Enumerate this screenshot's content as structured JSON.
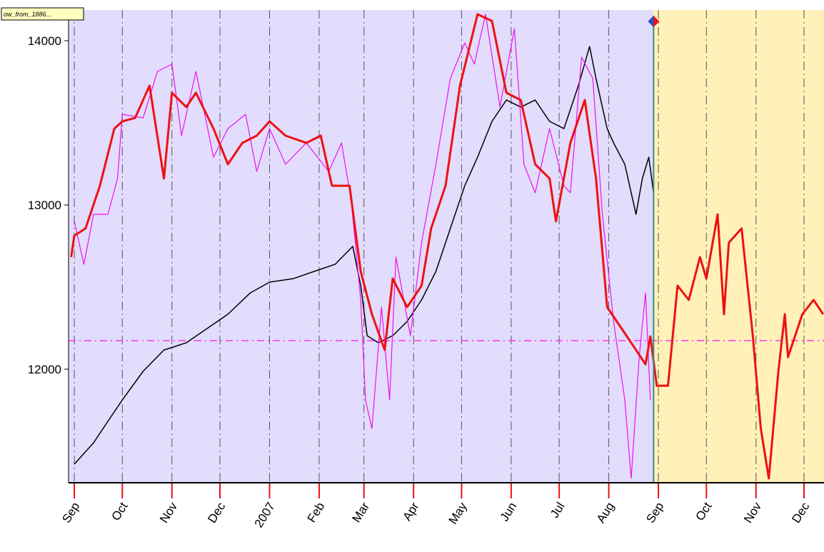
{
  "chart_data": {
    "type": "line",
    "label_tag": "ow_from_1886...",
    "xlim": [
      -3.6,
      468.5
    ],
    "ylim": [
      11309,
      14187
    ],
    "xticks": [
      {
        "value": 0,
        "label": "Sep"
      },
      {
        "value": 30,
        "label": "Oct"
      },
      {
        "value": 61,
        "label": "Nov"
      },
      {
        "value": 91,
        "label": "Dec"
      },
      {
        "value": 122,
        "label": "2007"
      },
      {
        "value": 153,
        "label": "Feb"
      },
      {
        "value": 181,
        "label": "Mar"
      },
      {
        "value": 212,
        "label": "Apr"
      },
      {
        "value": 242,
        "label": "May"
      },
      {
        "value": 273,
        "label": "Jun"
      },
      {
        "value": 303,
        "label": "Jul"
      },
      {
        "value": 334,
        "label": "Aug"
      },
      {
        "value": 365,
        "label": "Sep"
      },
      {
        "value": 395,
        "label": "Oct"
      },
      {
        "value": 426,
        "label": "Nov"
      },
      {
        "value": 456,
        "label": "Dec"
      }
    ],
    "yticks": [
      12000,
      13000,
      14000
    ],
    "grid": true,
    "hline": 12174,
    "hline_color": "#ff33ff",
    "vline": 362,
    "vline_color": "#2f8f8f",
    "history_color": "#e2dcfd",
    "forecast_color": "#fff1b8",
    "series": [
      {
        "color": "#000000",
        "width": 1.5,
        "x": [
          0,
          12,
          21,
          30,
          43,
          56,
          70,
          83,
          96,
          110,
          122,
          137,
          150,
          163,
          174,
          179,
          183,
          190,
          199,
          208,
          217,
          226,
          235,
          244,
          252,
          261,
          270,
          279,
          288,
          297,
          306,
          315,
          322,
          326,
          333,
          337,
          344,
          351,
          355,
          359,
          362
        ],
        "values": [
          11422,
          11552,
          11683,
          11813,
          11987,
          12117,
          12161,
          12248,
          12335,
          12465,
          12530,
          12552,
          12596,
          12639,
          12748,
          12509,
          12204,
          12161,
          12204,
          12291,
          12422,
          12596,
          12857,
          13117,
          13291,
          13509,
          13639,
          13596,
          13639,
          13509,
          13465,
          13726,
          13965,
          13770,
          13465,
          13378,
          13248,
          12943,
          13161,
          13291,
          13074
        ]
      },
      {
        "color": "#ee11ee",
        "width": 1.2,
        "x": [
          0,
          6,
          12,
          21,
          27,
          30,
          43,
          52,
          61,
          67,
          76,
          87,
          96,
          107,
          114,
          122,
          132,
          145,
          159,
          167,
          173,
          179,
          182,
          186,
          192,
          197,
          201,
          210,
          217,
          226,
          235,
          244,
          250,
          257,
          266,
          275,
          281,
          288,
          297,
          306,
          310,
          317,
          324,
          330,
          337,
          344,
          348,
          353,
          357,
          360
        ],
        "values": [
          12900,
          12639,
          12943,
          12943,
          13161,
          13552,
          13530,
          13813,
          13857,
          13422,
          13813,
          13291,
          13465,
          13552,
          13204,
          13465,
          13248,
          13378,
          13204,
          13378,
          13030,
          12422,
          11813,
          11639,
          12378,
          11813,
          12683,
          12204,
          12770,
          13248,
          13770,
          13987,
          13857,
          14161,
          13596,
          14074,
          13248,
          13074,
          13465,
          13117,
          13074,
          13900,
          13770,
          12943,
          12291,
          11813,
          11335,
          12074,
          12465,
          11813
        ]
      },
      {
        "color": "#ee1111",
        "width": 3,
        "x": [
          -2,
          0,
          7,
          16,
          25,
          30,
          38,
          47,
          56,
          61,
          70,
          76,
          87,
          96,
          105,
          114,
          122,
          132,
          145,
          154,
          161,
          172,
          179,
          186,
          194,
          199,
          208,
          217,
          223,
          232,
          241,
          252,
          261,
          270,
          279,
          288,
          297,
          301,
          310,
          319,
          326,
          333,
          342,
          351,
          357,
          360,
          364,
          371,
          377,
          384,
          391,
          395,
          402,
          406,
          409,
          417,
          424,
          429,
          434,
          440,
          444,
          446,
          455,
          462,
          468
        ],
        "values": [
          12683,
          12813,
          12857,
          13117,
          13465,
          13509,
          13530,
          13726,
          13161,
          13683,
          13596,
          13683,
          13465,
          13248,
          13378,
          13422,
          13509,
          13422,
          13378,
          13422,
          13117,
          13117,
          12596,
          12335,
          12117,
          12552,
          12378,
          12509,
          12857,
          13117,
          13726,
          14161,
          14120,
          13683,
          13639,
          13248,
          13161,
          12900,
          13378,
          13639,
          13161,
          12378,
          12248,
          12117,
          12030,
          12200,
          11900,
          11900,
          12509,
          12422,
          12683,
          12552,
          12943,
          12335,
          12770,
          12857,
          12204,
          11639,
          11335,
          11987,
          12335,
          12074,
          12335,
          12422,
          12335
        ]
      }
    ]
  }
}
